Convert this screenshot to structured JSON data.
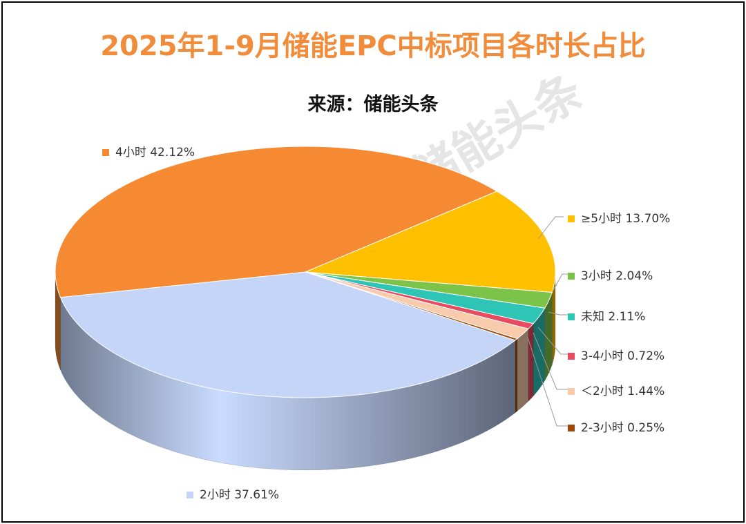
{
  "chart_data": {
    "type": "pie",
    "title": "2025年1-9月储能EPC中标项目各时长占比",
    "subtitle": "来源：储能头条",
    "slices": [
      {
        "label": "≥5小时",
        "value": 13.7,
        "display": "13.70%",
        "color": "#FFC000"
      },
      {
        "label": "3小时",
        "value": 2.04,
        "display": "2.04%",
        "color": "#7CC34A"
      },
      {
        "label": "未知",
        "value": 2.11,
        "display": "2.11%",
        "color": "#2EC4B6"
      },
      {
        "label": "3-4小时",
        "value": 0.72,
        "display": "0.72%",
        "color": "#E84A5F"
      },
      {
        "label": "＜2小时",
        "value": 1.44,
        "display": "1.44%",
        "color": "#F8CBAD"
      },
      {
        "label": "2-3小时",
        "value": 0.25,
        "display": "0.25%",
        "color": "#9C4A0A"
      },
      {
        "label": "2小时",
        "value": 37.61,
        "display": "37.61%",
        "color": "#C5D5F7"
      },
      {
        "label": "4小时",
        "value": 42.12,
        "display": "42.12%",
        "color": "#F58A33"
      }
    ],
    "legend": "data-labels"
  },
  "watermark": "储能头条"
}
